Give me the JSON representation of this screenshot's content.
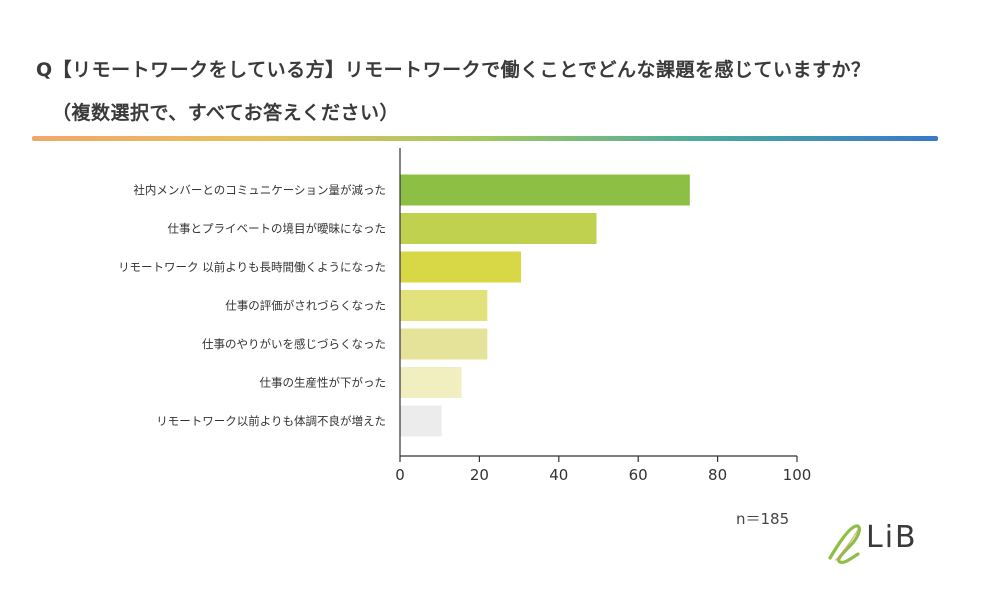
{
  "title_line1": "Q【リモートワークをしている方】リモートワークで働くことでどんな課題を感じていますか？",
  "title_line2": "（複数選択で、すべてお答えください）",
  "colors": {
    "rule_gradient": [
      "#f0a868",
      "#e8c060",
      "#a0c860",
      "#4aa8a0",
      "#3a78c8"
    ]
  },
  "n_label": "n＝185",
  "logo_text": "LiB",
  "chart_data": {
    "type": "bar",
    "orientation": "horizontal",
    "categories": [
      "社内メンバーとのコミュニケーション量が減った",
      "仕事とプライベートの境目が曖昧になった",
      "リモートワーク 以前よりも長時間働くようになった",
      "仕事の評価がされづらくなった",
      "仕事のやりがいを感じづらくなった",
      "仕事の生産性が下がった",
      "リモートワーク以前よりも体調不良が増えた"
    ],
    "values": [
      73,
      49.5,
      30.5,
      22,
      22,
      15.5,
      10.5
    ],
    "colors": [
      "#8dbf44",
      "#bfd14f",
      "#d8d846",
      "#e1e27c",
      "#e5e39a",
      "#f1efc0",
      "#ececec"
    ],
    "xlim": [
      0,
      100
    ],
    "xticks": [
      "0",
      "20",
      "40",
      "60",
      "80",
      "100"
    ],
    "grid": false
  }
}
